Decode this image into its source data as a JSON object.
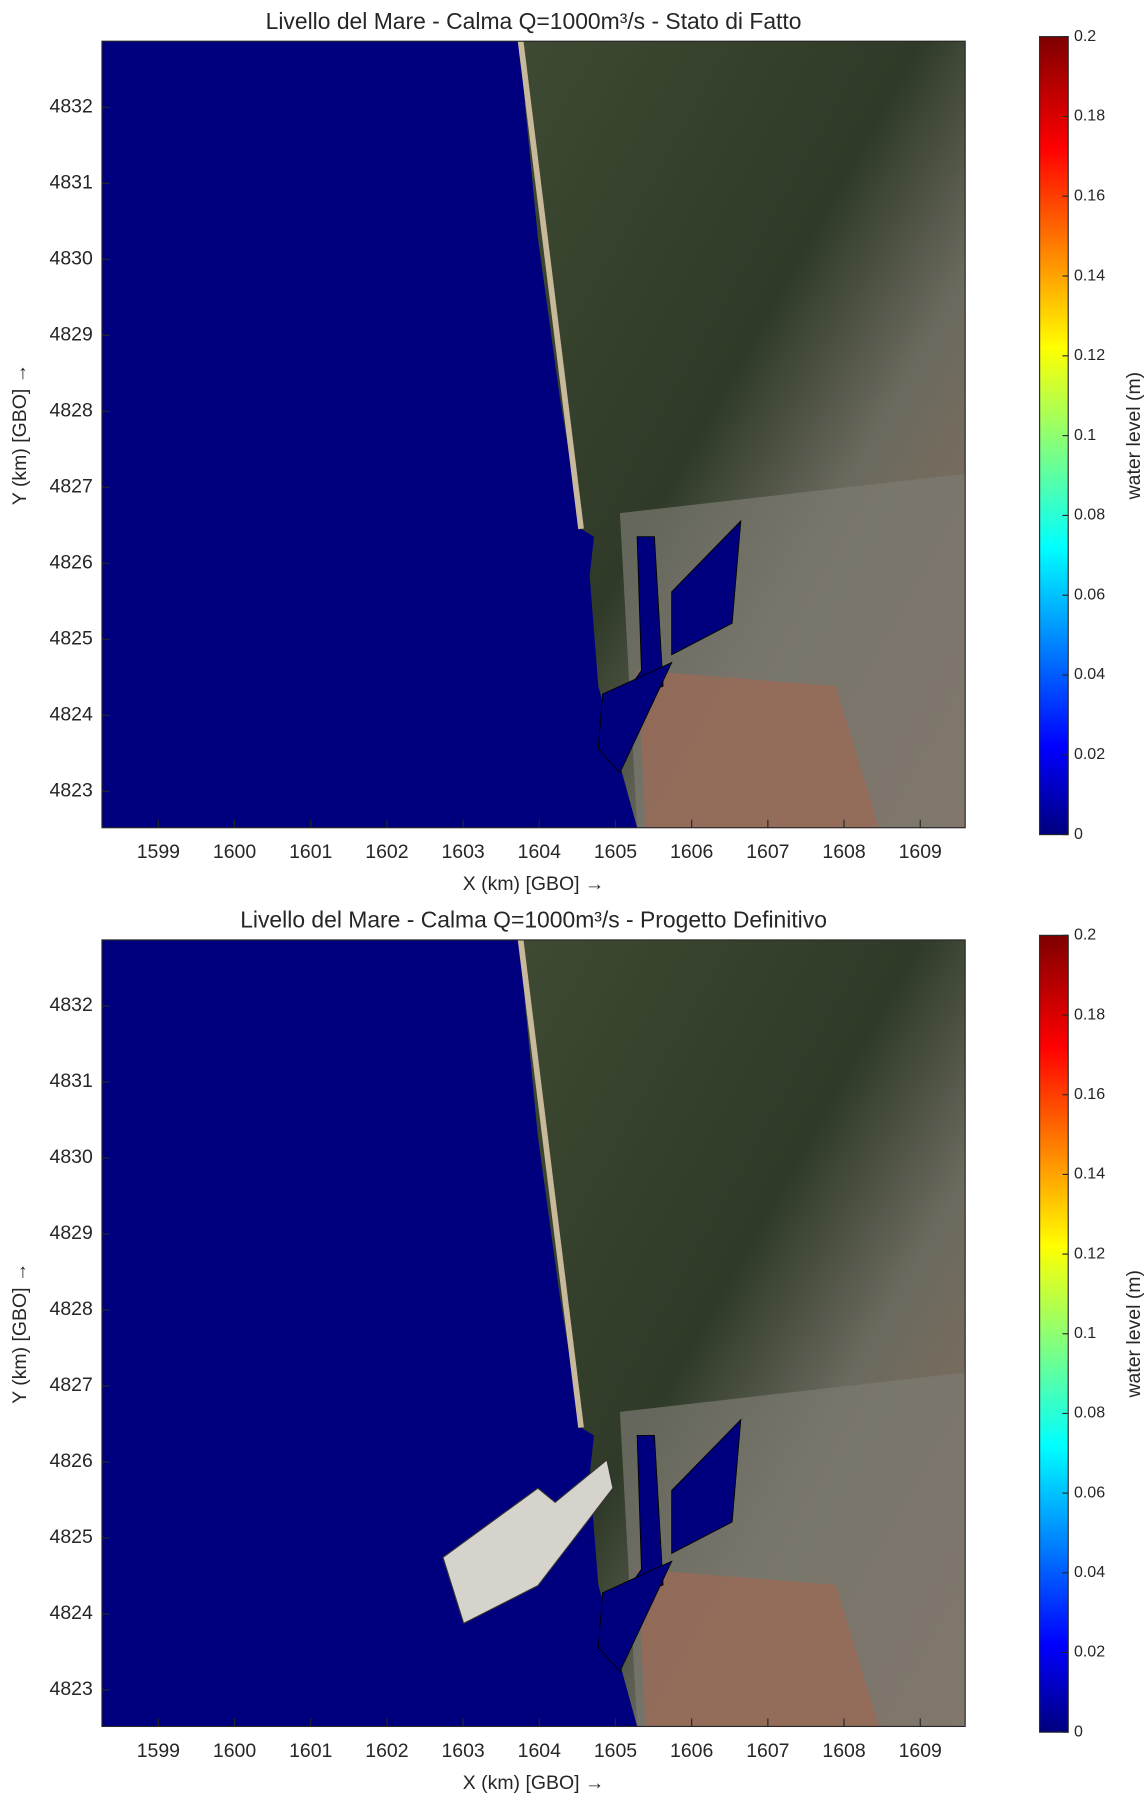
{
  "chart_data": [
    {
      "type": "map",
      "title": "Livello del Mare - Calma Q=1000m³/s - Stato di Fatto",
      "xlabel": "X (km) [GBO] →",
      "ylabel": "Y (km) [GBO] →",
      "xlim": [
        1598.26,
        1609.59
      ],
      "xticks": [
        1599,
        1600,
        1601,
        1602,
        1603,
        1604,
        1605,
        1606,
        1607,
        1608,
        1609
      ],
      "ylim": [
        4822.52,
        4832.87
      ],
      "yticks": [
        4823,
        4824,
        4825,
        4826,
        4827,
        4828,
        4829,
        4830,
        4831,
        4832
      ],
      "colorbar_label": "water level (m)",
      "clim": [
        0,
        0.2
      ],
      "cticks": [
        0,
        0.02,
        0.04,
        0.06,
        0.08,
        0.1,
        0.12,
        0.14,
        0.16,
        0.18,
        0.2
      ],
      "sea_color": "#00007f",
      "reclaimed_area": false
    },
    {
      "type": "map",
      "title": "Livello del Mare - Calma Q=1000m³/s - Progetto Definitivo",
      "xlabel": "X (km) [GBO] →",
      "ylabel": "Y (km) [GBO] →",
      "xlim": [
        1598.26,
        1609.59
      ],
      "xticks": [
        1599,
        1600,
        1601,
        1602,
        1603,
        1604,
        1605,
        1606,
        1607,
        1608,
        1609
      ],
      "ylim": [
        4822.52,
        4832.87
      ],
      "yticks": [
        4823,
        4824,
        4825,
        4826,
        4827,
        4828,
        4829,
        4830,
        4831,
        4832
      ],
      "colorbar_label": "water level (m)",
      "clim": [
        0,
        0.2
      ],
      "cticks": [
        0,
        0.02,
        0.04,
        0.06,
        0.08,
        0.1,
        0.12,
        0.14,
        0.16,
        0.18,
        0.2
      ],
      "sea_color": "#00007f",
      "reclaimed_area": true
    }
  ]
}
